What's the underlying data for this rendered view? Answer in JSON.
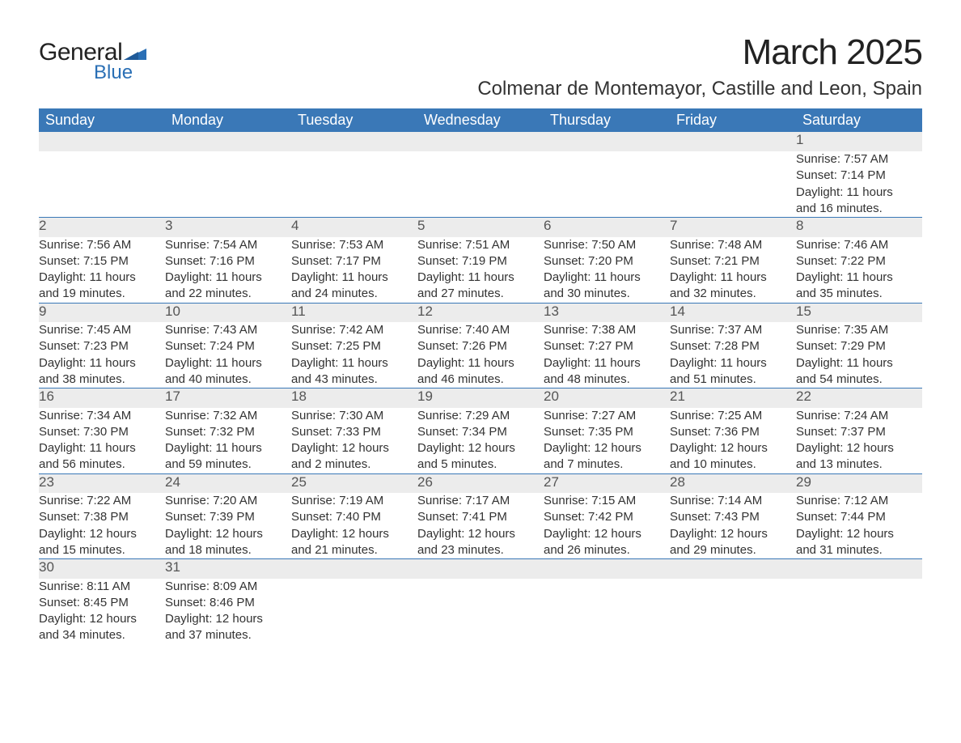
{
  "logo": {
    "text_general": "General",
    "text_blue": "Blue",
    "triangle_color": "#2a6fb5"
  },
  "title": "March 2025",
  "subtitle": "Colmenar de Montemayor, Castille and Leon, Spain",
  "colors": {
    "header_bg": "#3a78b7",
    "header_text": "#ffffff",
    "daynum_bg": "#ececec",
    "daynum_text": "#555555",
    "body_text": "#333333",
    "row_border": "#3a78b7"
  },
  "fonts": {
    "title_size_pt": 33,
    "subtitle_size_pt": 18,
    "header_size_pt": 14,
    "daynum_size_pt": 13,
    "detail_size_pt": 11
  },
  "weekday_headers": [
    "Sunday",
    "Monday",
    "Tuesday",
    "Wednesday",
    "Thursday",
    "Friday",
    "Saturday"
  ],
  "weeks": [
    {
      "days": [
        null,
        null,
        null,
        null,
        null,
        null,
        {
          "num": "1",
          "sunrise": "Sunrise: 7:57 AM",
          "sunset": "Sunset: 7:14 PM",
          "daylight1": "Daylight: 11 hours",
          "daylight2": "and 16 minutes."
        }
      ]
    },
    {
      "days": [
        {
          "num": "2",
          "sunrise": "Sunrise: 7:56 AM",
          "sunset": "Sunset: 7:15 PM",
          "daylight1": "Daylight: 11 hours",
          "daylight2": "and 19 minutes."
        },
        {
          "num": "3",
          "sunrise": "Sunrise: 7:54 AM",
          "sunset": "Sunset: 7:16 PM",
          "daylight1": "Daylight: 11 hours",
          "daylight2": "and 22 minutes."
        },
        {
          "num": "4",
          "sunrise": "Sunrise: 7:53 AM",
          "sunset": "Sunset: 7:17 PM",
          "daylight1": "Daylight: 11 hours",
          "daylight2": "and 24 minutes."
        },
        {
          "num": "5",
          "sunrise": "Sunrise: 7:51 AM",
          "sunset": "Sunset: 7:19 PM",
          "daylight1": "Daylight: 11 hours",
          "daylight2": "and 27 minutes."
        },
        {
          "num": "6",
          "sunrise": "Sunrise: 7:50 AM",
          "sunset": "Sunset: 7:20 PM",
          "daylight1": "Daylight: 11 hours",
          "daylight2": "and 30 minutes."
        },
        {
          "num": "7",
          "sunrise": "Sunrise: 7:48 AM",
          "sunset": "Sunset: 7:21 PM",
          "daylight1": "Daylight: 11 hours",
          "daylight2": "and 32 minutes."
        },
        {
          "num": "8",
          "sunrise": "Sunrise: 7:46 AM",
          "sunset": "Sunset: 7:22 PM",
          "daylight1": "Daylight: 11 hours",
          "daylight2": "and 35 minutes."
        }
      ]
    },
    {
      "days": [
        {
          "num": "9",
          "sunrise": "Sunrise: 7:45 AM",
          "sunset": "Sunset: 7:23 PM",
          "daylight1": "Daylight: 11 hours",
          "daylight2": "and 38 minutes."
        },
        {
          "num": "10",
          "sunrise": "Sunrise: 7:43 AM",
          "sunset": "Sunset: 7:24 PM",
          "daylight1": "Daylight: 11 hours",
          "daylight2": "and 40 minutes."
        },
        {
          "num": "11",
          "sunrise": "Sunrise: 7:42 AM",
          "sunset": "Sunset: 7:25 PM",
          "daylight1": "Daylight: 11 hours",
          "daylight2": "and 43 minutes."
        },
        {
          "num": "12",
          "sunrise": "Sunrise: 7:40 AM",
          "sunset": "Sunset: 7:26 PM",
          "daylight1": "Daylight: 11 hours",
          "daylight2": "and 46 minutes."
        },
        {
          "num": "13",
          "sunrise": "Sunrise: 7:38 AM",
          "sunset": "Sunset: 7:27 PM",
          "daylight1": "Daylight: 11 hours",
          "daylight2": "and 48 minutes."
        },
        {
          "num": "14",
          "sunrise": "Sunrise: 7:37 AM",
          "sunset": "Sunset: 7:28 PM",
          "daylight1": "Daylight: 11 hours",
          "daylight2": "and 51 minutes."
        },
        {
          "num": "15",
          "sunrise": "Sunrise: 7:35 AM",
          "sunset": "Sunset: 7:29 PM",
          "daylight1": "Daylight: 11 hours",
          "daylight2": "and 54 minutes."
        }
      ]
    },
    {
      "days": [
        {
          "num": "16",
          "sunrise": "Sunrise: 7:34 AM",
          "sunset": "Sunset: 7:30 PM",
          "daylight1": "Daylight: 11 hours",
          "daylight2": "and 56 minutes."
        },
        {
          "num": "17",
          "sunrise": "Sunrise: 7:32 AM",
          "sunset": "Sunset: 7:32 PM",
          "daylight1": "Daylight: 11 hours",
          "daylight2": "and 59 minutes."
        },
        {
          "num": "18",
          "sunrise": "Sunrise: 7:30 AM",
          "sunset": "Sunset: 7:33 PM",
          "daylight1": "Daylight: 12 hours",
          "daylight2": "and 2 minutes."
        },
        {
          "num": "19",
          "sunrise": "Sunrise: 7:29 AM",
          "sunset": "Sunset: 7:34 PM",
          "daylight1": "Daylight: 12 hours",
          "daylight2": "and 5 minutes."
        },
        {
          "num": "20",
          "sunrise": "Sunrise: 7:27 AM",
          "sunset": "Sunset: 7:35 PM",
          "daylight1": "Daylight: 12 hours",
          "daylight2": "and 7 minutes."
        },
        {
          "num": "21",
          "sunrise": "Sunrise: 7:25 AM",
          "sunset": "Sunset: 7:36 PM",
          "daylight1": "Daylight: 12 hours",
          "daylight2": "and 10 minutes."
        },
        {
          "num": "22",
          "sunrise": "Sunrise: 7:24 AM",
          "sunset": "Sunset: 7:37 PM",
          "daylight1": "Daylight: 12 hours",
          "daylight2": "and 13 minutes."
        }
      ]
    },
    {
      "days": [
        {
          "num": "23",
          "sunrise": "Sunrise: 7:22 AM",
          "sunset": "Sunset: 7:38 PM",
          "daylight1": "Daylight: 12 hours",
          "daylight2": "and 15 minutes."
        },
        {
          "num": "24",
          "sunrise": "Sunrise: 7:20 AM",
          "sunset": "Sunset: 7:39 PM",
          "daylight1": "Daylight: 12 hours",
          "daylight2": "and 18 minutes."
        },
        {
          "num": "25",
          "sunrise": "Sunrise: 7:19 AM",
          "sunset": "Sunset: 7:40 PM",
          "daylight1": "Daylight: 12 hours",
          "daylight2": "and 21 minutes."
        },
        {
          "num": "26",
          "sunrise": "Sunrise: 7:17 AM",
          "sunset": "Sunset: 7:41 PM",
          "daylight1": "Daylight: 12 hours",
          "daylight2": "and 23 minutes."
        },
        {
          "num": "27",
          "sunrise": "Sunrise: 7:15 AM",
          "sunset": "Sunset: 7:42 PM",
          "daylight1": "Daylight: 12 hours",
          "daylight2": "and 26 minutes."
        },
        {
          "num": "28",
          "sunrise": "Sunrise: 7:14 AM",
          "sunset": "Sunset: 7:43 PM",
          "daylight1": "Daylight: 12 hours",
          "daylight2": "and 29 minutes."
        },
        {
          "num": "29",
          "sunrise": "Sunrise: 7:12 AM",
          "sunset": "Sunset: 7:44 PM",
          "daylight1": "Daylight: 12 hours",
          "daylight2": "and 31 minutes."
        }
      ]
    },
    {
      "days": [
        {
          "num": "30",
          "sunrise": "Sunrise: 8:11 AM",
          "sunset": "Sunset: 8:45 PM",
          "daylight1": "Daylight: 12 hours",
          "daylight2": "and 34 minutes."
        },
        {
          "num": "31",
          "sunrise": "Sunrise: 8:09 AM",
          "sunset": "Sunset: 8:46 PM",
          "daylight1": "Daylight: 12 hours",
          "daylight2": "and 37 minutes."
        },
        null,
        null,
        null,
        null,
        null
      ]
    }
  ]
}
